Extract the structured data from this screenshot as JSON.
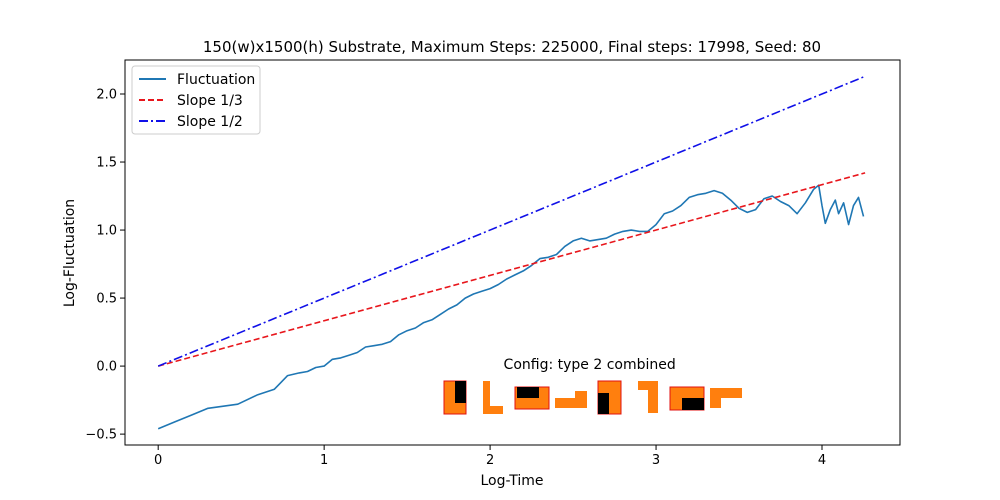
{
  "chart_data": {
    "type": "line",
    "title": "150(w)x1500(h) Substrate, Maximum Steps: 225000, Final steps: 17998, Seed: 80",
    "xlabel": "Log-Time",
    "ylabel": "Log-Fluctuation",
    "xlim": [
      -0.2,
      4.47
    ],
    "ylim": [
      -0.58,
      2.25
    ],
    "xticks": [
      0,
      1,
      2,
      3,
      4
    ],
    "xtick_labels": [
      "0",
      "1",
      "2",
      "3",
      "4"
    ],
    "yticks": [
      -0.5,
      0.0,
      0.5,
      1.0,
      1.5,
      2.0
    ],
    "ytick_labels": [
      "−0.5",
      "0.0",
      "0.5",
      "1.0",
      "1.5",
      "2.0"
    ],
    "legend_position": "top-left",
    "grid": false,
    "series": [
      {
        "name": "Fluctuation",
        "style": "solid",
        "color": "#1f77b4",
        "points": [
          [
            0.0,
            -0.46
          ],
          [
            0.1,
            -0.41
          ],
          [
            0.2,
            -0.36
          ],
          [
            0.3,
            -0.31
          ],
          [
            0.48,
            -0.28
          ],
          [
            0.6,
            -0.21
          ],
          [
            0.7,
            -0.17
          ],
          [
            0.78,
            -0.07
          ],
          [
            0.85,
            -0.05
          ],
          [
            0.9,
            -0.04
          ],
          [
            0.95,
            -0.01
          ],
          [
            1.0,
            0.0
          ],
          [
            1.05,
            0.05
          ],
          [
            1.1,
            0.06
          ],
          [
            1.15,
            0.08
          ],
          [
            1.2,
            0.1
          ],
          [
            1.25,
            0.14
          ],
          [
            1.3,
            0.15
          ],
          [
            1.35,
            0.16
          ],
          [
            1.4,
            0.18
          ],
          [
            1.45,
            0.23
          ],
          [
            1.5,
            0.26
          ],
          [
            1.55,
            0.28
          ],
          [
            1.6,
            0.32
          ],
          [
            1.65,
            0.34
          ],
          [
            1.7,
            0.38
          ],
          [
            1.75,
            0.42
          ],
          [
            1.8,
            0.45
          ],
          [
            1.85,
            0.5
          ],
          [
            1.9,
            0.53
          ],
          [
            1.95,
            0.55
          ],
          [
            2.0,
            0.57
          ],
          [
            2.05,
            0.6
          ],
          [
            2.1,
            0.64
          ],
          [
            2.15,
            0.67
          ],
          [
            2.2,
            0.7
          ],
          [
            2.25,
            0.74
          ],
          [
            2.3,
            0.79
          ],
          [
            2.35,
            0.8
          ],
          [
            2.4,
            0.82
          ],
          [
            2.45,
            0.88
          ],
          [
            2.5,
            0.92
          ],
          [
            2.55,
            0.94
          ],
          [
            2.6,
            0.92
          ],
          [
            2.65,
            0.93
          ],
          [
            2.7,
            0.94
          ],
          [
            2.75,
            0.97
          ],
          [
            2.8,
            0.99
          ],
          [
            2.85,
            1.0
          ],
          [
            2.9,
            0.99
          ],
          [
            2.95,
            0.99
          ],
          [
            3.0,
            1.04
          ],
          [
            3.05,
            1.12
          ],
          [
            3.1,
            1.14
          ],
          [
            3.15,
            1.18
          ],
          [
            3.2,
            1.24
          ],
          [
            3.25,
            1.26
          ],
          [
            3.3,
            1.27
          ],
          [
            3.35,
            1.29
          ],
          [
            3.4,
            1.27
          ],
          [
            3.45,
            1.22
          ],
          [
            3.5,
            1.16
          ],
          [
            3.55,
            1.13
          ],
          [
            3.6,
            1.15
          ],
          [
            3.65,
            1.23
          ],
          [
            3.7,
            1.25
          ],
          [
            3.75,
            1.21
          ],
          [
            3.8,
            1.18
          ],
          [
            3.85,
            1.12
          ],
          [
            3.9,
            1.2
          ],
          [
            3.95,
            1.3
          ],
          [
            3.98,
            1.33
          ],
          [
            4.0,
            1.18
          ],
          [
            4.02,
            1.05
          ],
          [
            4.05,
            1.15
          ],
          [
            4.08,
            1.22
          ],
          [
            4.1,
            1.12
          ],
          [
            4.13,
            1.2
          ],
          [
            4.16,
            1.04
          ],
          [
            4.19,
            1.18
          ],
          [
            4.22,
            1.24
          ],
          [
            4.25,
            1.1
          ]
        ]
      },
      {
        "name": "Slope 1/3",
        "style": "dashed",
        "color": "#e8161c",
        "points": [
          [
            0.0,
            0.0
          ],
          [
            4.26,
            1.42
          ]
        ]
      },
      {
        "name": "Slope 1/2",
        "style": "dashdot",
        "color": "#1010e8",
        "points": [
          [
            0.0,
            0.0
          ],
          [
            4.26,
            2.13
          ]
        ]
      }
    ],
    "annotation": {
      "text": "Config:  type 2 combined",
      "anchor": [
        2.6,
        -0.02
      ]
    },
    "config_glyphs": {
      "fill_color": "#ff7f0e",
      "edge_color": "#e01010",
      "dark_color": "#000000"
    }
  }
}
